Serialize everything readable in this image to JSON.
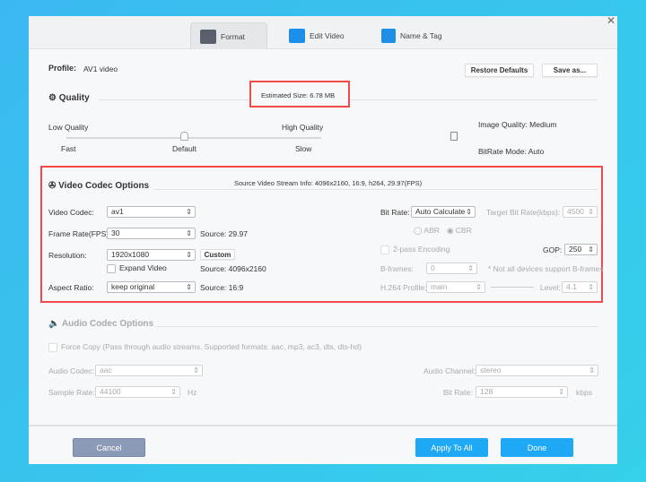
{
  "tabs": [
    {
      "label": "Format",
      "icon": "format-gear-icon",
      "active": true
    },
    {
      "label": "Edit Video",
      "icon": "edit-video-icon"
    },
    {
      "label": "Name & Tag",
      "icon": "name-tag-icon"
    }
  ],
  "profile": {
    "label": "Profile:",
    "value": "AV1 video"
  },
  "buttons": {
    "restore": "Restore Defaults",
    "save_as": "Save as...",
    "cancel": "Cancel",
    "apply_all": "Apply To All",
    "done": "Done",
    "custom": "Custom"
  },
  "estimated_size": "Estimated Size: 6.78 MB",
  "quality": {
    "title": "Quality",
    "low": "Low Quality",
    "high": "High Quality",
    "fast": "Fast",
    "default": "Default",
    "slow": "Slow",
    "slider_position": "Default",
    "image_quality": "Image Quality: Medium",
    "bitrate_mode": "BitRate Mode: Auto"
  },
  "video": {
    "title": "Video Codec Options",
    "source_info": "Source Video Stream Info: 4096x2160, 16:9, h264, 29.97(FPS)",
    "codec_label": "Video Codec:",
    "codec": "av1",
    "fps_label": "Frame Rate(FPS):",
    "fps": "30",
    "fps_source": "Source: 29.97",
    "res_label": "Resolution:",
    "res": "1920x1080",
    "res_source": "Source: 4096x2160",
    "expand": "Expand Video",
    "aspect_label": "Aspect Ratio:",
    "aspect": "keep original",
    "aspect_source": "Source: 16:9",
    "bitrate_label": "Bit Rate:",
    "bitrate": "Auto Calculate",
    "target_label": "Target Bit Rate(kbps):",
    "target": "4500",
    "abr": "ABR",
    "cbr": "CBR",
    "twopass": "2-pass Encoding",
    "gop_label": "GOP:",
    "gop": "250",
    "bframes_label": "B-frames:",
    "bframes": "0",
    "bframes_note": "* Not all devices support B-frames",
    "profile_label": "H.264 Profile:",
    "profile": "main",
    "level_label": "Level:",
    "level": "4.1"
  },
  "audio": {
    "title": "Audio Codec Options",
    "force_copy": "Force Copy (Pass through audio streams. Supported formats: aac, mp3, ac3, dts, dts-hd)",
    "codec_label": "Audio Codec:",
    "codec": "aac",
    "channel_label": "Audio Channel:",
    "channel": "stereo",
    "sample_label": "Sample Rate:",
    "sample": "44100",
    "sample_unit": "Hz",
    "bitrate_label": "Bit Rate:",
    "bitrate": "128",
    "bitrate_unit": "kbps"
  },
  "colors": {
    "accent": "#1ea8f5",
    "cancel": "#8b9ab6",
    "highlight": "#f04a4a"
  }
}
